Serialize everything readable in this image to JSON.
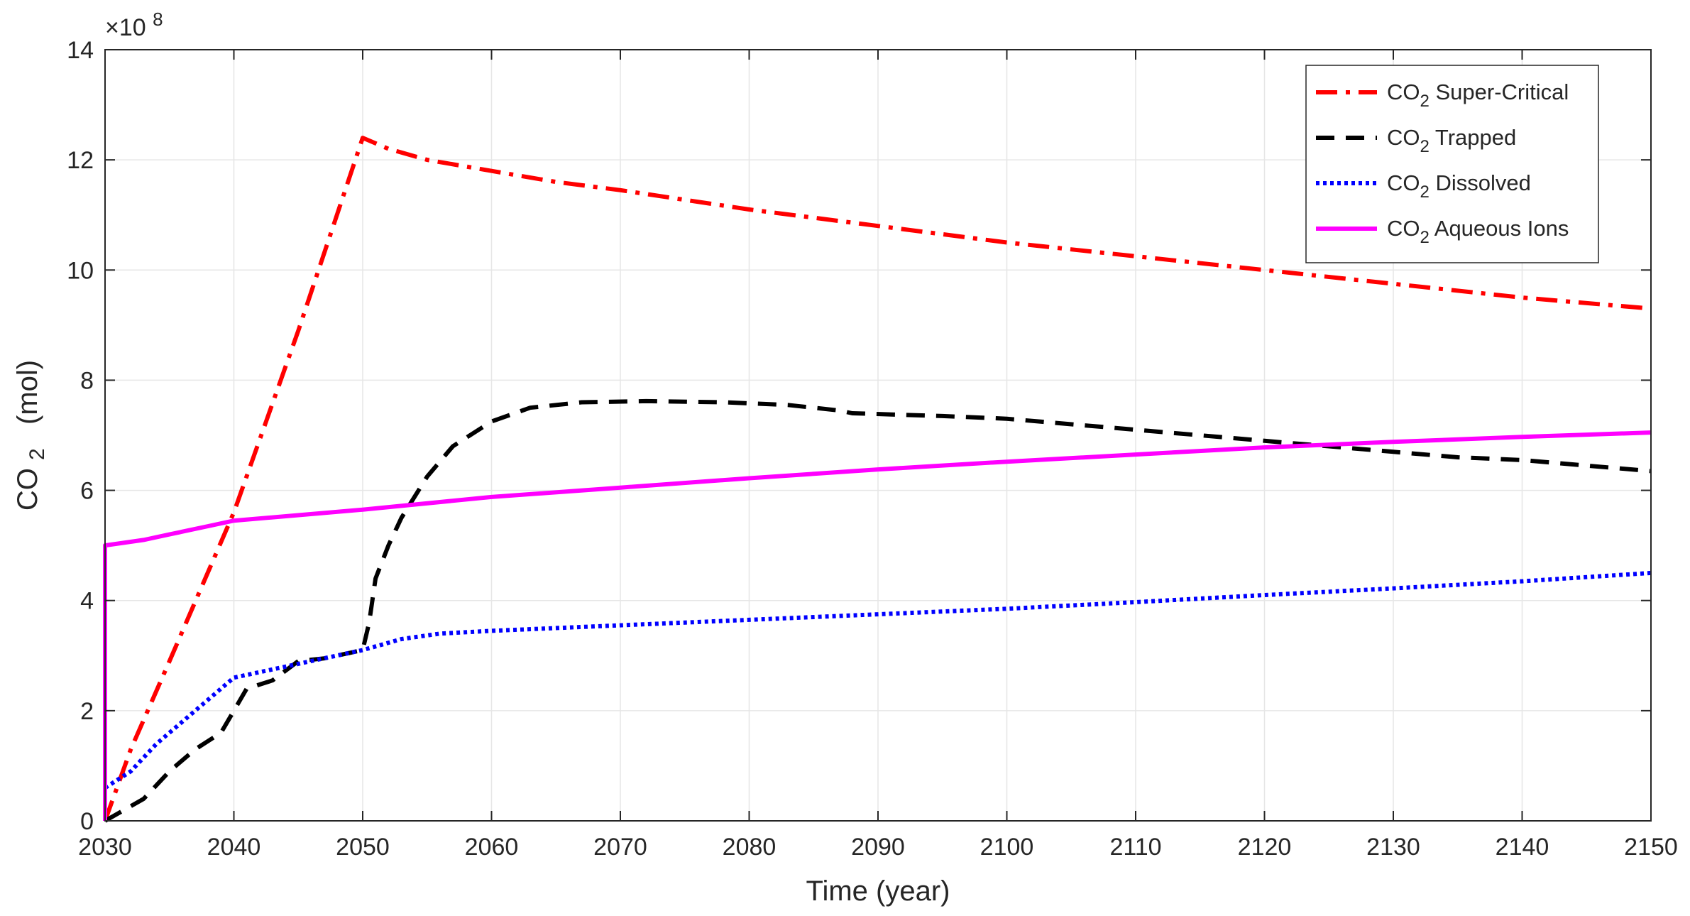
{
  "chart_data": {
    "type": "line",
    "xlabel": "Time (year)",
    "ylabel_main": "CO",
    "ylabel_sub": "2",
    "ylabel_tail": "  (mol)",
    "y_exponent_base": "×10",
    "y_exponent_power": "8",
    "xlim": [
      2030,
      2150
    ],
    "ylim": [
      0,
      14
    ],
    "x_ticks": [
      2030,
      2040,
      2050,
      2060,
      2070,
      2080,
      2090,
      2100,
      2110,
      2120,
      2130,
      2140,
      2150
    ],
    "y_ticks": [
      0,
      2,
      4,
      6,
      8,
      10,
      12,
      14
    ],
    "grid": true,
    "legend_position": "top-right",
    "series": [
      {
        "name_main": "CO",
        "name_sub": "2",
        "name_tail": " Super-Critical",
        "color": "#ff0000",
        "style": "dashdot",
        "points": [
          [
            2030,
            0
          ],
          [
            2032,
            1.3
          ],
          [
            2035,
            2.9
          ],
          [
            2040,
            5.6
          ],
          [
            2045,
            8.9
          ],
          [
            2050,
            12.4
          ],
          [
            2052,
            12.2
          ],
          [
            2055,
            12.0
          ],
          [
            2060,
            11.8
          ],
          [
            2065,
            11.6
          ],
          [
            2070,
            11.45
          ],
          [
            2080,
            11.1
          ],
          [
            2090,
            10.8
          ],
          [
            2100,
            10.5
          ],
          [
            2110,
            10.25
          ],
          [
            2120,
            10.0
          ],
          [
            2130,
            9.75
          ],
          [
            2140,
            9.5
          ],
          [
            2150,
            9.3
          ]
        ]
      },
      {
        "name_main": "CO",
        "name_sub": "2",
        "name_tail": " Trapped",
        "color": "#000000",
        "style": "dashed",
        "points": [
          [
            2030,
            0
          ],
          [
            2033,
            0.4
          ],
          [
            2035,
            0.9
          ],
          [
            2037,
            1.3
          ],
          [
            2039,
            1.6
          ],
          [
            2040,
            2.0
          ],
          [
            2041,
            2.4
          ],
          [
            2043,
            2.55
          ],
          [
            2045,
            2.9
          ],
          [
            2047,
            2.95
          ],
          [
            2049,
            3.05
          ],
          [
            2050,
            3.1
          ],
          [
            2050.5,
            3.6
          ],
          [
            2051,
            4.4
          ],
          [
            2052,
            5.0
          ],
          [
            2053,
            5.5
          ],
          [
            2055,
            6.25
          ],
          [
            2057,
            6.8
          ],
          [
            2060,
            7.25
          ],
          [
            2063,
            7.5
          ],
          [
            2067,
            7.6
          ],
          [
            2072,
            7.62
          ],
          [
            2078,
            7.6
          ],
          [
            2083,
            7.55
          ],
          [
            2087,
            7.45
          ],
          [
            2088,
            7.4
          ],
          [
            2095,
            7.35
          ],
          [
            2100,
            7.3
          ],
          [
            2110,
            7.1
          ],
          [
            2120,
            6.9
          ],
          [
            2125,
            6.8
          ],
          [
            2130,
            6.7
          ],
          [
            2135,
            6.6
          ],
          [
            2140,
            6.55
          ],
          [
            2145,
            6.45
          ],
          [
            2150,
            6.35
          ]
        ]
      },
      {
        "name_main": "CO",
        "name_sub": "2",
        "name_tail": " Dissolved",
        "color": "#0000ff",
        "style": "dotted",
        "points": [
          [
            2030,
            0.6
          ],
          [
            2032,
            0.9
          ],
          [
            2034,
            1.4
          ],
          [
            2036,
            1.8
          ],
          [
            2038,
            2.2
          ],
          [
            2040,
            2.6
          ],
          [
            2043,
            2.75
          ],
          [
            2046,
            2.9
          ],
          [
            2050,
            3.1
          ],
          [
            2053,
            3.3
          ],
          [
            2056,
            3.4
          ],
          [
            2060,
            3.45
          ],
          [
            2070,
            3.55
          ],
          [
            2080,
            3.65
          ],
          [
            2090,
            3.75
          ],
          [
            2100,
            3.85
          ],
          [
            2110,
            3.97
          ],
          [
            2120,
            4.1
          ],
          [
            2130,
            4.22
          ],
          [
            2140,
            4.35
          ],
          [
            2150,
            4.5
          ]
        ]
      },
      {
        "name_main": "CO",
        "name_sub": "2",
        "name_tail": " Aqueous Ions",
        "color": "#ff00ff",
        "style": "solid",
        "points": [
          [
            2030,
            0
          ],
          [
            2030,
            5.0
          ],
          [
            2033,
            5.1
          ],
          [
            2035,
            5.2
          ],
          [
            2038,
            5.35
          ],
          [
            2040,
            5.45
          ],
          [
            2045,
            5.55
          ],
          [
            2050,
            5.65
          ],
          [
            2060,
            5.88
          ],
          [
            2070,
            6.05
          ],
          [
            2080,
            6.22
          ],
          [
            2090,
            6.38
          ],
          [
            2100,
            6.52
          ],
          [
            2110,
            6.65
          ],
          [
            2120,
            6.78
          ],
          [
            2130,
            6.88
          ],
          [
            2140,
            6.97
          ],
          [
            2150,
            7.05
          ]
        ]
      }
    ]
  }
}
